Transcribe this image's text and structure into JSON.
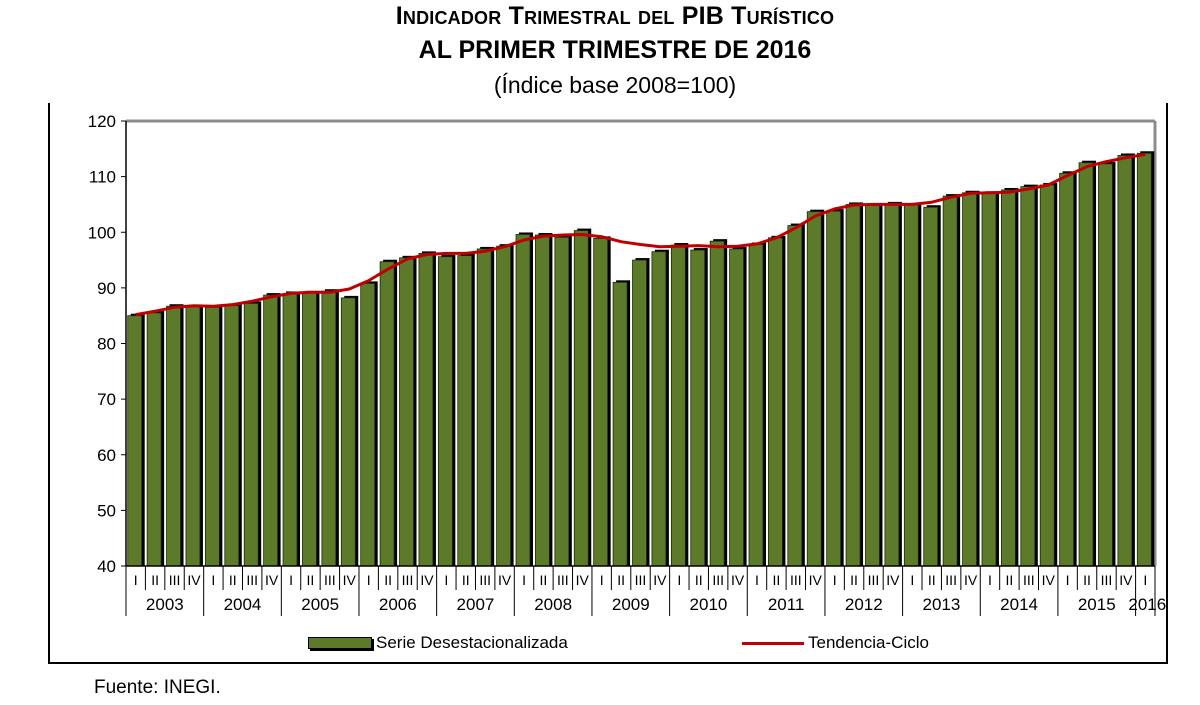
{
  "chart_data": {
    "type": "bar",
    "title_line1": "Indicador Trimestral del PIB Turístico",
    "title_line2": "al primer trimestre de 2016",
    "subtitle": "(Índice base 2008=100)",
    "ylim": [
      40,
      120
    ],
    "yticks": [
      "120",
      "110",
      "100",
      "90",
      "80",
      "70",
      "60",
      "50",
      "40"
    ],
    "ytick_values": [
      120,
      110,
      100,
      90,
      80,
      70,
      60,
      50,
      40
    ],
    "quarter_labels": [
      "I",
      "II",
      "III",
      "IV"
    ],
    "years": [
      "2003",
      "2004",
      "2005",
      "2006",
      "2007",
      "2008",
      "2009",
      "2010",
      "2011",
      "2012",
      "2013",
      "2014",
      "2015",
      "2016"
    ],
    "series": [
      {
        "name": "Serie Desestacionalizada",
        "kind": "bar",
        "color": "#5c7a2a",
        "values": [
          85.0,
          85.5,
          86.7,
          86.6,
          86.5,
          86.8,
          87.2,
          88.7,
          89.0,
          89.1,
          89.4,
          88.2,
          90.8,
          94.7,
          95.4,
          96.2,
          95.6,
          95.8,
          97.0,
          97.5,
          99.6,
          99.5,
          99.1,
          100.3,
          98.9,
          91.0,
          95.0,
          96.5,
          97.7,
          96.8,
          98.4,
          97.0,
          97.8,
          99.0,
          101.2,
          103.7,
          103.8,
          105.0,
          104.8,
          105.1,
          104.9,
          104.5,
          106.5,
          107.1,
          107.0,
          107.6,
          108.2,
          108.5,
          110.6,
          112.5,
          112.3,
          113.8,
          114.2
        ]
      },
      {
        "name": "Tendencia-Ciclo",
        "kind": "line",
        "color": "#c00000",
        "values": [
          85.2,
          85.8,
          86.5,
          86.8,
          86.7,
          87.0,
          87.6,
          88.4,
          89.0,
          89.2,
          89.2,
          89.8,
          91.3,
          93.4,
          95.2,
          96.0,
          96.2,
          96.2,
          96.6,
          97.4,
          98.6,
          99.3,
          99.5,
          99.6,
          99.2,
          98.3,
          97.8,
          97.4,
          97.5,
          97.6,
          97.4,
          97.5,
          97.9,
          99.0,
          100.8,
          102.9,
          104.2,
          104.9,
          105.0,
          105.0,
          105.0,
          105.4,
          106.3,
          107.0,
          107.1,
          107.2,
          107.8,
          108.5,
          110.2,
          111.8,
          112.7,
          113.4,
          114.0
        ]
      }
    ]
  },
  "legend": {
    "bar_label": "Serie Desestacionalizada",
    "line_label": "Tendencia-Ciclo"
  },
  "source_text": "Fuente: INEGI."
}
